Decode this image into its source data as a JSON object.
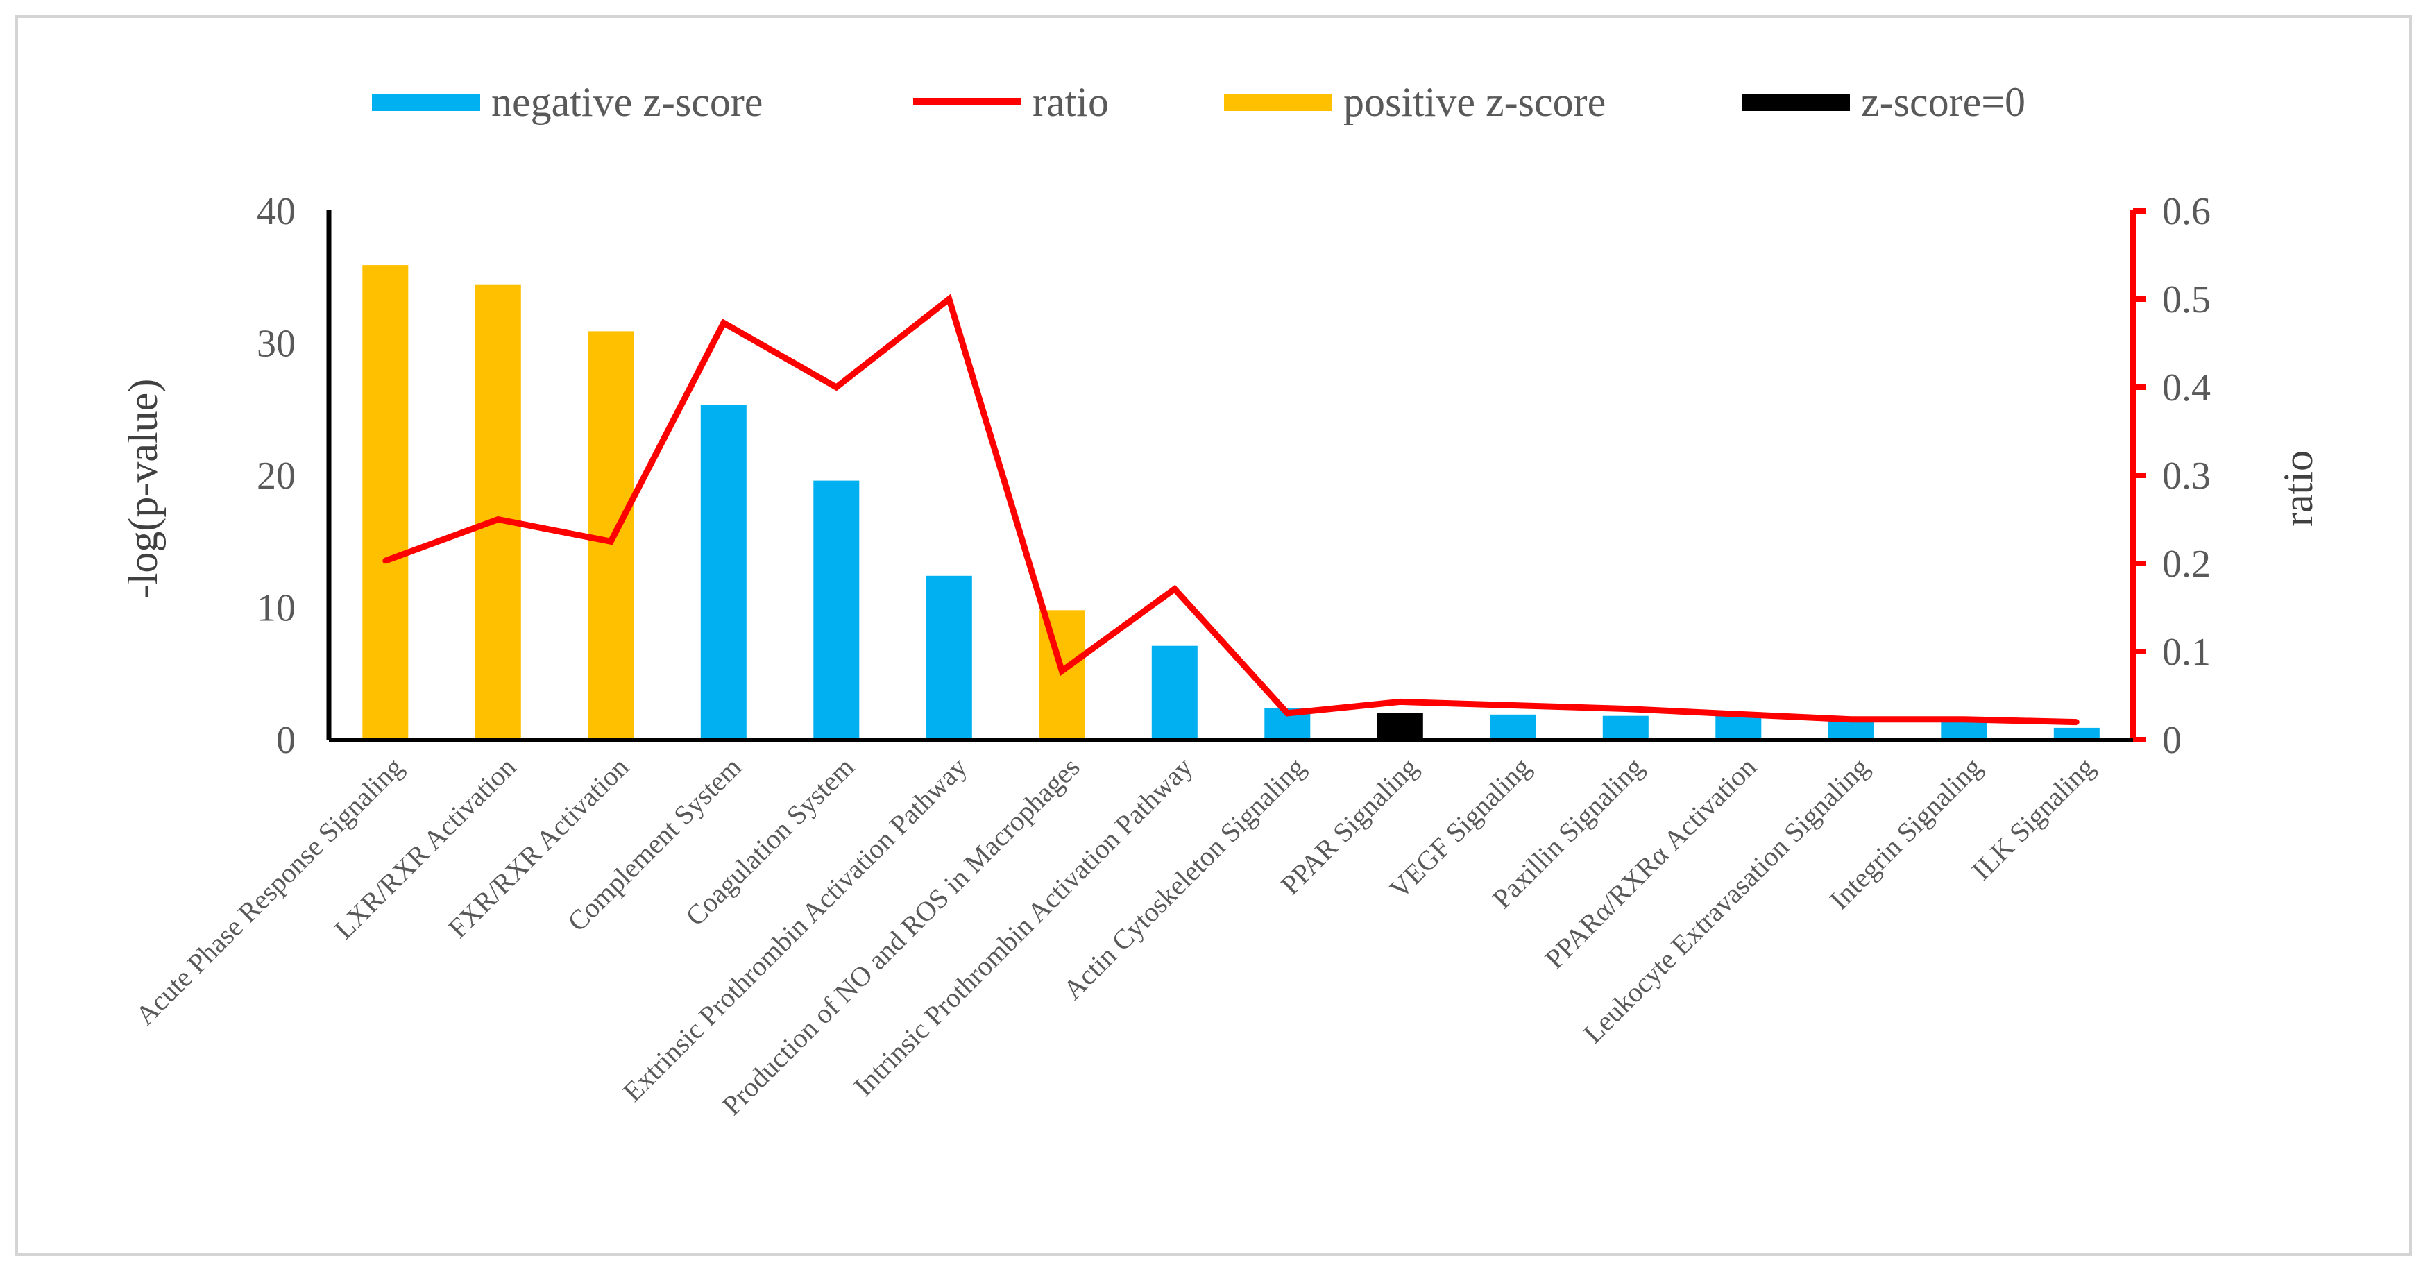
{
  "chart_data": {
    "type": "bar",
    "categories": [
      "Acute Phase Response Signaling",
      "LXR/RXR Activation",
      "FXR/RXR Activation",
      "Complement System",
      "Coagulation System",
      "Extrinsic Prothrombin Activation Pathway",
      "Production of NO and ROS in Macrophages",
      "Intrinsic Prothrombin Activation Pathway",
      "Actin Cytoskeleton Signaling",
      "PPAR Signaling",
      "VEGF Signaling",
      "Paxillin Signaling",
      "PPARα/RXRα Activation",
      "Leukocyte Extravasation Signaling",
      "Integrin Signaling",
      "ILK Signaling"
    ],
    "series": [
      {
        "name": "-log(p-value)",
        "kind": "bar",
        "axis": "left",
        "values": [
          35.9,
          34.4,
          30.9,
          25.3,
          19.6,
          12.4,
          9.8,
          7.1,
          2.4,
          2.0,
          1.9,
          1.8,
          1.8,
          1.5,
          1.4,
          0.9
        ],
        "groups": [
          "positive",
          "positive",
          "positive",
          "negative",
          "negative",
          "negative",
          "positive",
          "negative",
          "negative",
          "zero",
          "negative",
          "negative",
          "negative",
          "negative",
          "negative",
          "negative"
        ]
      },
      {
        "name": "ratio",
        "kind": "line",
        "axis": "right",
        "values": [
          0.203,
          0.25,
          0.225,
          0.473,
          0.4,
          0.5,
          0.078,
          0.171,
          0.03,
          0.043,
          0.039,
          0.035,
          0.029,
          0.023,
          0.023,
          0.02
        ]
      }
    ],
    "legend": [
      {
        "label": "negative z-score",
        "color": "#00b0f0",
        "group": "negative"
      },
      {
        "label": "ratio",
        "color": "#ff0000",
        "group": "ratio"
      },
      {
        "label": "positive z-score",
        "color": "#ffc000",
        "group": "positive"
      },
      {
        "label": "z-score=0",
        "color": "#000000",
        "group": "zero"
      }
    ],
    "legend_position": "top",
    "ylabel": "-log(p-value)",
    "ylim": [
      0,
      40
    ],
    "yticks": [
      "0",
      "10",
      "20",
      "30",
      "40"
    ],
    "y2label": "ratio",
    "y2lim": [
      0,
      0.6
    ],
    "y2ticks": [
      "0",
      "0.1",
      "0.2",
      "0.3",
      "0.4",
      "0.5",
      "0.6"
    ],
    "grid": false,
    "colors": {
      "negative": "#00b0f0",
      "positive": "#ffc000",
      "zero": "#000000",
      "ratio": "#ff0000",
      "left_axis": "#000000",
      "right_axis": "#ff0000"
    }
  }
}
